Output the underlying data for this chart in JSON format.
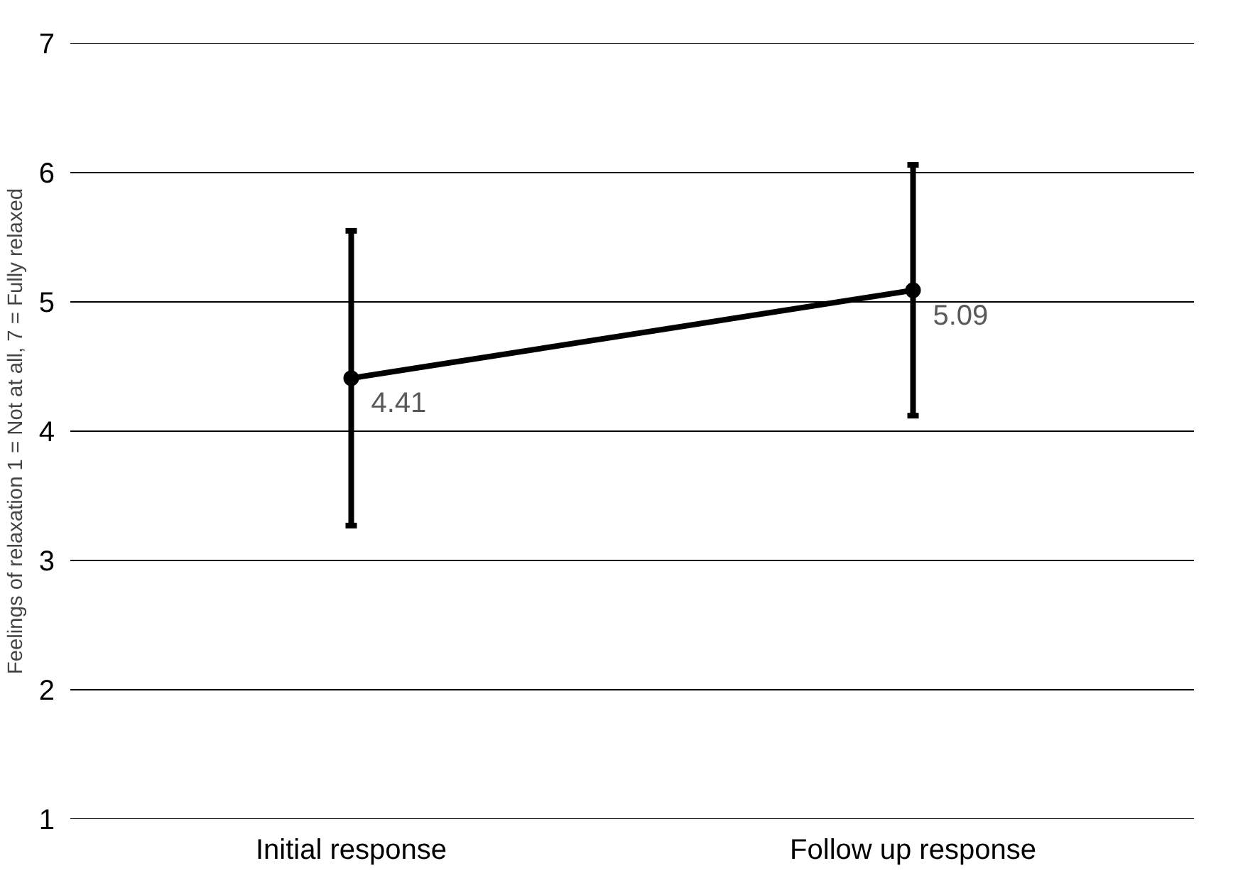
{
  "chart_data": {
    "type": "line",
    "ylabel": "Feelings of relaxation 1 = Not at all, 7 = Fully relaxed",
    "categories": [
      "Initial response",
      "Follow up response"
    ],
    "series": [
      {
        "color": "#000000",
        "values": [
          4.41,
          5.09
        ],
        "errors": [
          1.14,
          0.97
        ]
      }
    ],
    "ylim": [
      1,
      7
    ],
    "yticks": [
      1,
      2,
      3,
      4,
      5,
      6,
      7
    ],
    "grid": "y",
    "marker": "circle",
    "line_style": "solid",
    "data_labels": true
  }
}
